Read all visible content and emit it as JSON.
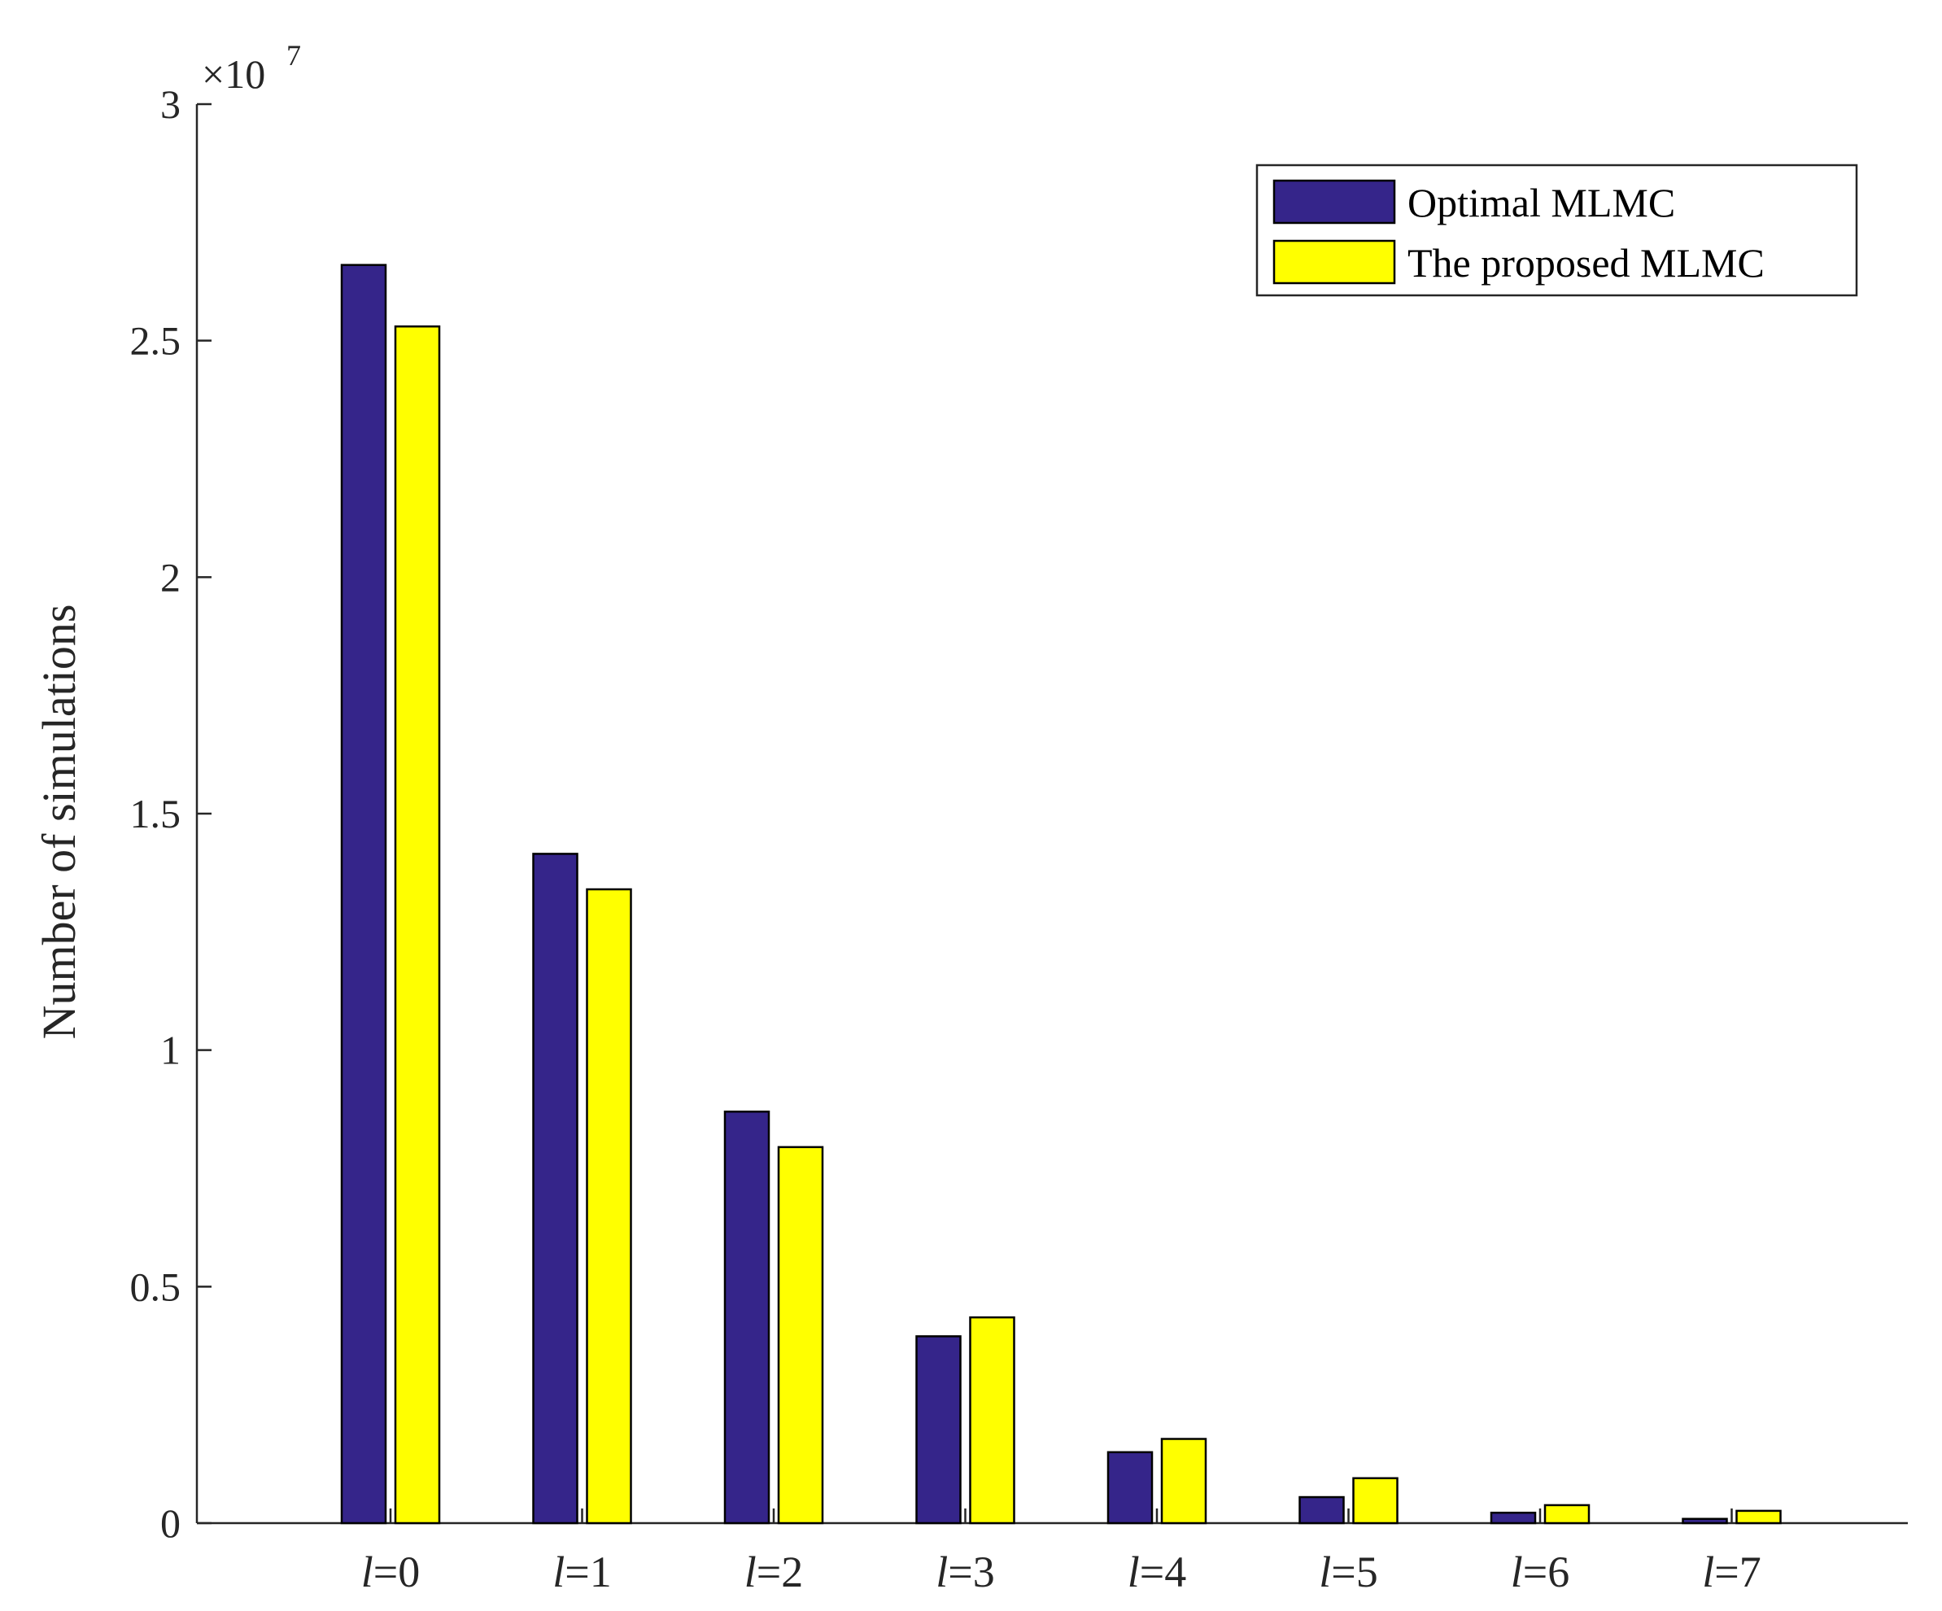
{
  "chart_data": {
    "type": "bar",
    "title": "",
    "xlabel": "",
    "ylabel": "Number of simulations",
    "y_exponent_label": "×10",
    "y_exponent_power": "7",
    "ylim": [
      0,
      3
    ],
    "yticks": [
      0,
      0.5,
      1,
      1.5,
      2,
      2.5,
      3
    ],
    "ytick_labels": [
      "0",
      "0.5",
      "1",
      "1.5",
      "2",
      "2.5",
      "3"
    ],
    "categories": [
      {
        "var": "l",
        "eq": "=0"
      },
      {
        "var": "l",
        "eq": "=1"
      },
      {
        "var": "l",
        "eq": "=2"
      },
      {
        "var": "l",
        "eq": "=3"
      },
      {
        "var": "l",
        "eq": "=4"
      },
      {
        "var": "l",
        "eq": "=5"
      },
      {
        "var": "l",
        "eq": "=6"
      },
      {
        "var": "l",
        "eq": "=7"
      }
    ],
    "series": [
      {
        "name": "Optimal MLMC",
        "color": "#35258a",
        "values": [
          2.66,
          1.415,
          0.87,
          0.395,
          0.15,
          0.055,
          0.022,
          0.009
        ]
      },
      {
        "name": "The proposed MLMC",
        "color": "#ffff00",
        "values": [
          2.53,
          1.34,
          0.795,
          0.435,
          0.178,
          0.095,
          0.038,
          0.026
        ]
      }
    ],
    "legend_position": "top-right",
    "grid": false
  }
}
